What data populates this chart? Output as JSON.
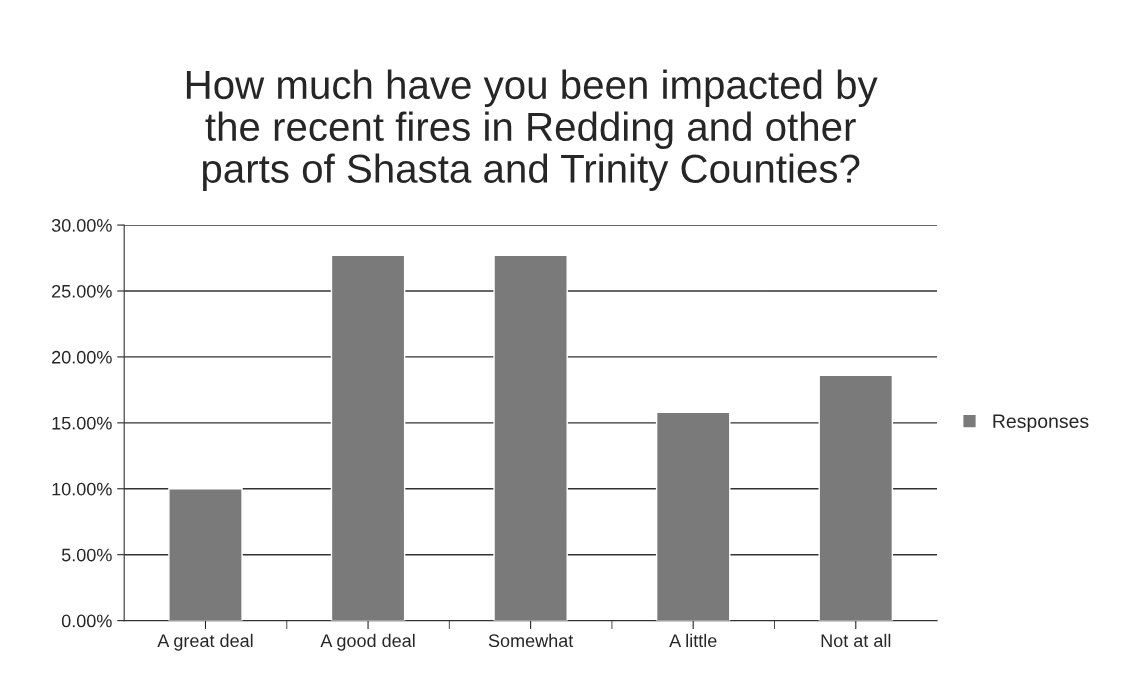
{
  "chart_data": {
    "type": "bar",
    "title": "How much have you been impacted by\nthe recent fires in Redding and other\nparts of Shasta and Trinity Counties?",
    "categories": [
      "A great deal",
      "A good deal",
      "Somewhat",
      "A little",
      "Not at all"
    ],
    "series": [
      {
        "name": "Responses",
        "color": "#7a7a7a",
        "values": [
          10.0,
          27.7,
          27.7,
          15.8,
          18.6
        ]
      }
    ],
    "ylim": [
      0,
      30
    ],
    "yticks": [
      {
        "value": 0,
        "label": "0.00%"
      },
      {
        "value": 5,
        "label": "5.00%"
      },
      {
        "value": 10,
        "label": "10.00%"
      },
      {
        "value": 15,
        "label": "15.00%"
      },
      {
        "value": 20,
        "label": "20.00%"
      },
      {
        "value": 25,
        "label": "25.00%"
      },
      {
        "value": 30,
        "label": "30.00%"
      }
    ],
    "grid": "y",
    "legend": "right"
  }
}
